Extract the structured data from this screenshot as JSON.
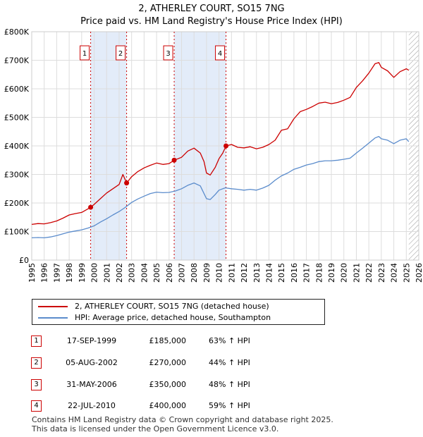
{
  "header": {
    "title": "2, ATHERLEY COURT, SO15 7NG",
    "subtitle": "Price paid vs. HM Land Registry's House Price Index (HPI)"
  },
  "colors": {
    "property": "#cc0000",
    "hpi": "#5b8ccc",
    "band": "#e3ecf9",
    "grid": "#dddddd"
  },
  "chart_data": {
    "type": "line",
    "title": "2, ATHERLEY COURT, SO15 7NG",
    "subtitle": "Price paid vs. HM Land Registry's House Price Index (HPI)",
    "xlim": [
      1995,
      2026
    ],
    "ylim": [
      0,
      800000
    ],
    "y_ticks": [
      0,
      100000,
      200000,
      300000,
      400000,
      500000,
      600000,
      700000,
      800000
    ],
    "y_tick_labels": [
      "£0",
      "£100K",
      "£200K",
      "£300K",
      "£400K",
      "£500K",
      "£600K",
      "£700K",
      "£800K"
    ],
    "x_ticks": [
      "1995",
      "1996",
      "1997",
      "1998",
      "1999",
      "2000",
      "2001",
      "2002",
      "2003",
      "2004",
      "2005",
      "2006",
      "2007",
      "2008",
      "2009",
      "2010",
      "2011",
      "2012",
      "2013",
      "2014",
      "2015",
      "2016",
      "2017",
      "2018",
      "2019",
      "2020",
      "2021",
      "2022",
      "2023",
      "2024",
      "2025",
      "2026"
    ],
    "series": [
      {
        "name": "2, ATHERLEY COURT, SO15 7NG (detached house)",
        "color": "#cc0000",
        "points": [
          [
            1995.0,
            125000
          ],
          [
            1995.5,
            128000
          ],
          [
            1996.0,
            127000
          ],
          [
            1996.5,
            131000
          ],
          [
            1997.0,
            137000
          ],
          [
            1997.5,
            147000
          ],
          [
            1998.0,
            158000
          ],
          [
            1998.5,
            163000
          ],
          [
            1999.0,
            167000
          ],
          [
            1999.72,
            185000
          ],
          [
            2000.0,
            195000
          ],
          [
            2000.5,
            215000
          ],
          [
            2001.0,
            235000
          ],
          [
            2001.5,
            250000
          ],
          [
            2002.0,
            265000
          ],
          [
            2002.3,
            300000
          ],
          [
            2002.6,
            270000
          ],
          [
            2003.0,
            292000
          ],
          [
            2003.5,
            310000
          ],
          [
            2004.0,
            323000
          ],
          [
            2004.5,
            332000
          ],
          [
            2005.0,
            340000
          ],
          [
            2005.5,
            335000
          ],
          [
            2006.0,
            338000
          ],
          [
            2006.41,
            350000
          ],
          [
            2007.0,
            360000
          ],
          [
            2007.5,
            382000
          ],
          [
            2008.0,
            392000
          ],
          [
            2008.5,
            375000
          ],
          [
            2008.8,
            345000
          ],
          [
            2009.0,
            305000
          ],
          [
            2009.3,
            298000
          ],
          [
            2009.7,
            325000
          ],
          [
            2010.0,
            355000
          ],
          [
            2010.3,
            375000
          ],
          [
            2010.56,
            400000
          ],
          [
            2011.0,
            405000
          ],
          [
            2011.5,
            395000
          ],
          [
            2012.0,
            393000
          ],
          [
            2012.5,
            397000
          ],
          [
            2013.0,
            390000
          ],
          [
            2013.5,
            395000
          ],
          [
            2014.0,
            405000
          ],
          [
            2014.5,
            420000
          ],
          [
            2015.0,
            455000
          ],
          [
            2015.5,
            460000
          ],
          [
            2016.0,
            495000
          ],
          [
            2016.5,
            520000
          ],
          [
            2017.0,
            528000
          ],
          [
            2017.5,
            538000
          ],
          [
            2018.0,
            550000
          ],
          [
            2018.5,
            553000
          ],
          [
            2019.0,
            548000
          ],
          [
            2019.5,
            552000
          ],
          [
            2020.0,
            560000
          ],
          [
            2020.5,
            570000
          ],
          [
            2021.0,
            605000
          ],
          [
            2021.5,
            628000
          ],
          [
            2022.0,
            655000
          ],
          [
            2022.5,
            688000
          ],
          [
            2022.8,
            692000
          ],
          [
            2023.0,
            675000
          ],
          [
            2023.5,
            663000
          ],
          [
            2024.0,
            640000
          ],
          [
            2024.5,
            660000
          ],
          [
            2025.0,
            670000
          ],
          [
            2025.2,
            665000
          ]
        ]
      },
      {
        "name": "HPI: Average price, detached house, Southampton",
        "color": "#5b8ccc",
        "points": [
          [
            1995.0,
            78000
          ],
          [
            1995.5,
            79000
          ],
          [
            1996.0,
            78000
          ],
          [
            1996.5,
            81000
          ],
          [
            1997.0,
            86000
          ],
          [
            1997.5,
            92000
          ],
          [
            1998.0,
            98000
          ],
          [
            1998.5,
            102000
          ],
          [
            1999.0,
            106000
          ],
          [
            1999.5,
            112000
          ],
          [
            2000.0,
            120000
          ],
          [
            2000.5,
            133000
          ],
          [
            2001.0,
            145000
          ],
          [
            2001.5,
            158000
          ],
          [
            2002.0,
            170000
          ],
          [
            2002.5,
            185000
          ],
          [
            2003.0,
            202000
          ],
          [
            2003.5,
            214000
          ],
          [
            2004.0,
            224000
          ],
          [
            2004.5,
            233000
          ],
          [
            2005.0,
            238000
          ],
          [
            2005.5,
            236000
          ],
          [
            2006.0,
            237000
          ],
          [
            2006.5,
            242000
          ],
          [
            2007.0,
            250000
          ],
          [
            2007.5,
            262000
          ],
          [
            2008.0,
            270000
          ],
          [
            2008.5,
            260000
          ],
          [
            2009.0,
            215000
          ],
          [
            2009.3,
            212000
          ],
          [
            2009.7,
            230000
          ],
          [
            2010.0,
            245000
          ],
          [
            2010.5,
            253000
          ],
          [
            2011.0,
            250000
          ],
          [
            2011.5,
            248000
          ],
          [
            2012.0,
            245000
          ],
          [
            2012.5,
            248000
          ],
          [
            2013.0,
            245000
          ],
          [
            2013.5,
            252000
          ],
          [
            2014.0,
            262000
          ],
          [
            2014.5,
            280000
          ],
          [
            2015.0,
            295000
          ],
          [
            2015.5,
            305000
          ],
          [
            2016.0,
            318000
          ],
          [
            2016.5,
            325000
          ],
          [
            2017.0,
            333000
          ],
          [
            2017.5,
            338000
          ],
          [
            2018.0,
            345000
          ],
          [
            2018.5,
            348000
          ],
          [
            2019.0,
            348000
          ],
          [
            2019.5,
            350000
          ],
          [
            2020.0,
            353000
          ],
          [
            2020.5,
            357000
          ],
          [
            2021.0,
            375000
          ],
          [
            2021.5,
            392000
          ],
          [
            2022.0,
            410000
          ],
          [
            2022.5,
            428000
          ],
          [
            2022.8,
            433000
          ],
          [
            2023.0,
            425000
          ],
          [
            2023.5,
            420000
          ],
          [
            2024.0,
            408000
          ],
          [
            2024.5,
            420000
          ],
          [
            2025.0,
            425000
          ],
          [
            2025.2,
            415000
          ]
        ]
      }
    ],
    "shaded_bands": [
      [
        1999.72,
        2002.6
      ],
      [
        2006.41,
        2010.56
      ]
    ],
    "hatched_region": [
      2025.2,
      2026
    ],
    "transactions": [
      {
        "label": "1",
        "date": "17-SEP-1999",
        "x": 1999.72,
        "price": 185000,
        "price_label": "£185,000",
        "hpi": "63% ↑ HPI"
      },
      {
        "label": "2",
        "date": "05-AUG-2002",
        "x": 2002.6,
        "price": 270000,
        "price_label": "£270,000",
        "hpi": "44% ↑ HPI"
      },
      {
        "label": "3",
        "date": "31-MAY-2006",
        "x": 2006.41,
        "price": 350000,
        "price_label": "£350,000",
        "hpi": "48% ↑ HPI"
      },
      {
        "label": "4",
        "date": "22-JUL-2010",
        "x": 2010.56,
        "price": 400000,
        "price_label": "£400,000",
        "hpi": "59% ↑ HPI"
      }
    ]
  },
  "legend": {
    "property_label": "2, ATHERLEY COURT, SO15 7NG (detached house)",
    "hpi_label": "HPI: Average price, detached house, Southampton"
  },
  "footer": {
    "line1": "Contains HM Land Registry data © Crown copyright and database right 2025.",
    "line2": "This data is licensed under the Open Government Licence v3.0."
  }
}
